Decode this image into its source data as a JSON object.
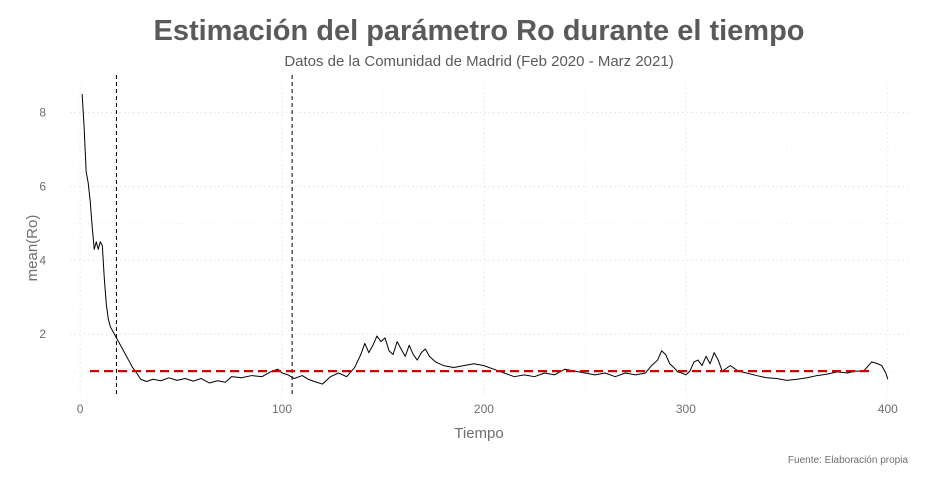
{
  "chart_data": {
    "type": "line",
    "title": "Estimación del parámetro Ro durante el tiempo",
    "subtitle": "Datos de la Comunidad de Madrid (Feb 2020 - Marz 2021)",
    "xlabel": "Tiempo",
    "ylabel": "mean(Ro)",
    "caption": "Fuente: Elaboración propia",
    "xlim": [
      -5,
      410
    ],
    "ylim": [
      0.3,
      8.8
    ],
    "x_ticks": [
      0,
      100,
      200,
      300,
      400
    ],
    "y_ticks": [
      2,
      4,
      6,
      8
    ],
    "grid": true,
    "vlines": [
      18,
      105
    ],
    "hline": {
      "y": 1,
      "color": "#cc0000"
    },
    "series": [
      {
        "color": "#000000",
        "points": [
          [
            1,
            8.5
          ],
          [
            2,
            7.6
          ],
          [
            3,
            6.4
          ],
          [
            4,
            6.1
          ],
          [
            5,
            5.6
          ],
          [
            6,
            4.9
          ],
          [
            7,
            4.3
          ],
          [
            8,
            4.5
          ],
          [
            9,
            4.3
          ],
          [
            10,
            4.5
          ],
          [
            11,
            4.4
          ],
          [
            12,
            3.5
          ],
          [
            13,
            2.8
          ],
          [
            14,
            2.4
          ],
          [
            15,
            2.2
          ],
          [
            16,
            2.1
          ],
          [
            17,
            2.0
          ],
          [
            18,
            1.9
          ],
          [
            20,
            1.7
          ],
          [
            22,
            1.5
          ],
          [
            24,
            1.3
          ],
          [
            26,
            1.1
          ],
          [
            28,
            0.95
          ],
          [
            30,
            0.78
          ],
          [
            33,
            0.72
          ],
          [
            36,
            0.78
          ],
          [
            40,
            0.74
          ],
          [
            44,
            0.82
          ],
          [
            48,
            0.75
          ],
          [
            52,
            0.8
          ],
          [
            56,
            0.73
          ],
          [
            60,
            0.8
          ],
          [
            64,
            0.68
          ],
          [
            68,
            0.74
          ],
          [
            72,
            0.7
          ],
          [
            75,
            0.85
          ],
          [
            80,
            0.82
          ],
          [
            85,
            0.88
          ],
          [
            90,
            0.85
          ],
          [
            95,
            1.0
          ],
          [
            98,
            1.05
          ],
          [
            100,
            0.95
          ],
          [
            103,
            0.9
          ],
          [
            106,
            0.8
          ],
          [
            110,
            0.88
          ],
          [
            113,
            0.78
          ],
          [
            116,
            0.72
          ],
          [
            120,
            0.65
          ],
          [
            124,
            0.85
          ],
          [
            128,
            0.95
          ],
          [
            132,
            0.85
          ],
          [
            136,
            1.1
          ],
          [
            139,
            1.45
          ],
          [
            141,
            1.75
          ],
          [
            143,
            1.5
          ],
          [
            145,
            1.7
          ],
          [
            147,
            1.95
          ],
          [
            149,
            1.8
          ],
          [
            151,
            1.9
          ],
          [
            153,
            1.55
          ],
          [
            155,
            1.45
          ],
          [
            157,
            1.8
          ],
          [
            159,
            1.6
          ],
          [
            161,
            1.4
          ],
          [
            163,
            1.7
          ],
          [
            165,
            1.45
          ],
          [
            167,
            1.3
          ],
          [
            169,
            1.5
          ],
          [
            171,
            1.6
          ],
          [
            173,
            1.4
          ],
          [
            176,
            1.25
          ],
          [
            180,
            1.15
          ],
          [
            185,
            1.1
          ],
          [
            190,
            1.15
          ],
          [
            195,
            1.2
          ],
          [
            200,
            1.15
          ],
          [
            205,
            1.05
          ],
          [
            210,
            0.95
          ],
          [
            215,
            0.85
          ],
          [
            220,
            0.9
          ],
          [
            225,
            0.85
          ],
          [
            230,
            0.95
          ],
          [
            235,
            0.9
          ],
          [
            240,
            1.05
          ],
          [
            245,
            1.0
          ],
          [
            250,
            0.95
          ],
          [
            255,
            0.9
          ],
          [
            260,
            0.95
          ],
          [
            265,
            0.85
          ],
          [
            270,
            0.95
          ],
          [
            275,
            0.9
          ],
          [
            280,
            0.95
          ],
          [
            283,
            1.15
          ],
          [
            286,
            1.3
          ],
          [
            288,
            1.55
          ],
          [
            290,
            1.45
          ],
          [
            292,
            1.2
          ],
          [
            294,
            1.1
          ],
          [
            296,
            0.98
          ],
          [
            298,
            0.95
          ],
          [
            300,
            0.9
          ],
          [
            302,
            1.0
          ],
          [
            304,
            1.25
          ],
          [
            306,
            1.3
          ],
          [
            308,
            1.15
          ],
          [
            310,
            1.4
          ],
          [
            312,
            1.2
          ],
          [
            314,
            1.5
          ],
          [
            316,
            1.3
          ],
          [
            318,
            1.0
          ],
          [
            322,
            1.15
          ],
          [
            326,
            1.0
          ],
          [
            330,
            0.95
          ],
          [
            335,
            0.88
          ],
          [
            340,
            0.82
          ],
          [
            345,
            0.8
          ],
          [
            350,
            0.75
          ],
          [
            355,
            0.78
          ],
          [
            360,
            0.82
          ],
          [
            365,
            0.88
          ],
          [
            370,
            0.92
          ],
          [
            375,
            0.98
          ],
          [
            380,
            0.95
          ],
          [
            384,
            1.0
          ],
          [
            388,
            1.0
          ],
          [
            392,
            1.25
          ],
          [
            395,
            1.2
          ],
          [
            397,
            1.15
          ],
          [
            399,
            0.95
          ],
          [
            400,
            0.78
          ]
        ]
      }
    ]
  }
}
